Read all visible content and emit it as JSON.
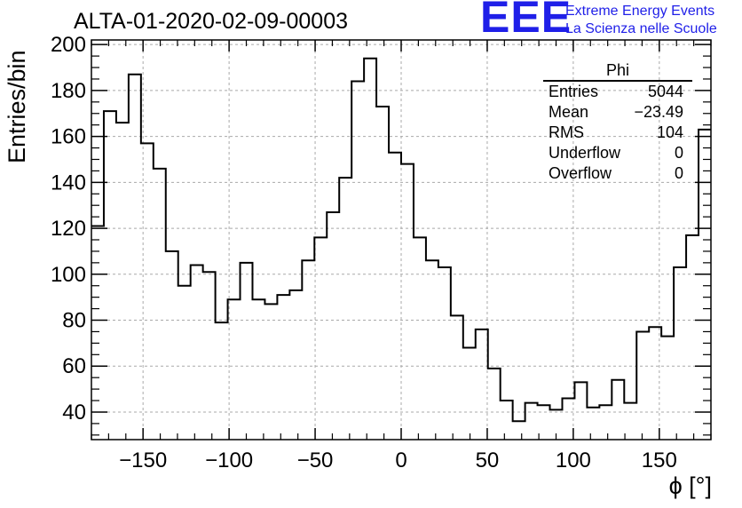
{
  "header": {
    "title": "ALTA-01-2020-02-09-00003",
    "logo_text": "EEE",
    "logo_line1": "Extreme Energy Events",
    "logo_line2": "La Scienza nelle Scuole",
    "logo_color": "#1f1fe8"
  },
  "stats": {
    "title": "Phi",
    "rows": [
      {
        "label": "Entries",
        "value": "5044"
      },
      {
        "label": "Mean",
        "value": "−23.49"
      },
      {
        "label": "RMS",
        "value": "104"
      },
      {
        "label": "Underflow",
        "value": "0"
      },
      {
        "label": "Overflow",
        "value": "0"
      }
    ]
  },
  "chart_data": {
    "type": "bar",
    "style": "step-histogram",
    "title": "ALTA-01-2020-02-09-00003",
    "xlabel": "ϕ [°]",
    "ylabel": "Entries/bin",
    "xlim": [
      -180,
      180
    ],
    "ylim": [
      28,
      202
    ],
    "bin_width": 7.2,
    "x_ticks": [
      -150,
      -100,
      -50,
      0,
      50,
      100,
      150
    ],
    "x_tick_labels": [
      "−150",
      "−100",
      "−50",
      "0",
      "50",
      "100",
      "150"
    ],
    "y_ticks": [
      40,
      60,
      80,
      100,
      120,
      140,
      160,
      180,
      200
    ],
    "y_tick_labels": [
      "40",
      "60",
      "80",
      "100",
      "120",
      "140",
      "160",
      "180",
      "200"
    ],
    "grid": true,
    "line_color": "#000000",
    "values": [
      121,
      171,
      166,
      187,
      157,
      146,
      110,
      95,
      104,
      101,
      79,
      89,
      105,
      89,
      87,
      91,
      93,
      106,
      116,
      127,
      142,
      184,
      194,
      173,
      153,
      148,
      116,
      106,
      103,
      82,
      68,
      76,
      59,
      45,
      36,
      44,
      43,
      41,
      46,
      53,
      42,
      43,
      54,
      44,
      75,
      77,
      73,
      103,
      117,
      163
    ]
  }
}
